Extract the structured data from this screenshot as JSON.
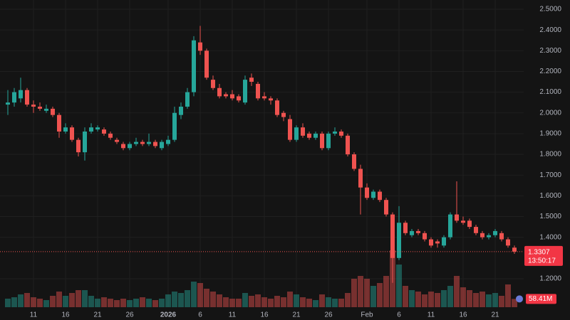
{
  "chart_data": {
    "type": "candlestick",
    "categories": [
      null,
      null,
      null,
      null,
      "11",
      null,
      null,
      null,
      null,
      "16",
      null,
      null,
      null,
      null,
      "21",
      null,
      null,
      null,
      null,
      "26",
      null,
      null,
      null,
      null,
      null,
      "2026",
      null,
      null,
      null,
      null,
      "6",
      null,
      null,
      null,
      null,
      "11",
      null,
      null,
      null,
      null,
      "16",
      null,
      null,
      null,
      null,
      "21",
      null,
      null,
      null,
      null,
      "26",
      null,
      null,
      null,
      null,
      null,
      "Feb",
      null,
      null,
      null,
      null,
      "6",
      null,
      null,
      null,
      null,
      "11",
      null,
      null,
      null,
      null,
      "16",
      null,
      null,
      null,
      null,
      "21",
      null,
      null,
      null
    ],
    "open": [
      2.04,
      2.05,
      2.07,
      2.11,
      2.04,
      2.03,
      2.01,
      2.02,
      1.99,
      1.91,
      1.93,
      1.87,
      1.81,
      1.91,
      1.92,
      1.92,
      1.9,
      1.87,
      1.85,
      1.83,
      1.85,
      1.86,
      1.85,
      1.86,
      1.83,
      1.85,
      1.87,
      1.99,
      2.03,
      2.1,
      2.34,
      2.3,
      2.16,
      2.12,
      2.09,
      2.09,
      2.08,
      2.05,
      2.17,
      2.14,
      2.08,
      2.07,
      2.06,
      2.0,
      1.97,
      1.87,
      1.93,
      1.9,
      1.88,
      1.9,
      1.83,
      1.9,
      1.91,
      1.89,
      1.8,
      1.73,
      1.64,
      1.59,
      1.62,
      1.58,
      1.51,
      1.3,
      1.47,
      1.41,
      1.43,
      1.42,
      1.39,
      1.38,
      1.36,
      1.4,
      1.51,
      1.48,
      1.48,
      1.45,
      1.42,
      1.4,
      1.41,
      1.42,
      1.39,
      1.35
    ],
    "high": [
      2.11,
      2.12,
      2.17,
      2.12,
      2.06,
      2.05,
      2.04,
      2.03,
      2.0,
      1.95,
      1.94,
      1.88,
      1.93,
      1.95,
      1.94,
      1.93,
      1.91,
      1.88,
      1.86,
      1.86,
      1.88,
      1.87,
      1.9,
      1.87,
      1.87,
      1.89,
      2.03,
      2.05,
      2.12,
      2.37,
      2.42,
      2.31,
      2.18,
      2.14,
      2.1,
      2.11,
      2.09,
      2.18,
      2.19,
      2.15,
      2.1,
      2.08,
      2.07,
      2.01,
      1.99,
      1.94,
      1.95,
      1.91,
      1.91,
      1.91,
      1.91,
      1.93,
      1.92,
      1.9,
      1.81,
      1.75,
      1.66,
      1.63,
      1.63,
      1.59,
      1.52,
      1.55,
      1.48,
      1.44,
      1.44,
      1.43,
      1.4,
      1.39,
      1.41,
      1.52,
      1.67,
      1.5,
      1.49,
      1.46,
      1.43,
      1.42,
      1.44,
      1.43,
      1.4,
      1.36
    ],
    "low": [
      1.99,
      2.03,
      2.05,
      2.03,
      2.0,
      2.01,
      2.0,
      1.98,
      1.88,
      1.9,
      1.86,
      1.79,
      1.77,
      1.9,
      1.91,
      1.89,
      1.87,
      1.85,
      1.82,
      1.82,
      1.84,
      1.84,
      1.84,
      1.83,
      1.82,
      1.84,
      1.86,
      1.97,
      2.02,
      2.08,
      2.28,
      2.16,
      2.11,
      2.07,
      2.07,
      2.06,
      2.05,
      2.04,
      2.13,
      2.06,
      2.06,
      2.04,
      1.98,
      1.96,
      1.86,
      1.86,
      1.88,
      1.87,
      1.87,
      1.82,
      1.82,
      1.89,
      1.88,
      1.79,
      1.72,
      1.51,
      1.58,
      1.58,
      1.57,
      1.5,
      1.18,
      1.29,
      1.41,
      1.4,
      1.41,
      1.38,
      1.35,
      1.35,
      1.35,
      1.39,
      1.47,
      1.46,
      1.44,
      1.41,
      1.39,
      1.39,
      1.4,
      1.38,
      1.35,
      1.32
    ],
    "close": [
      2.05,
      2.1,
      2.11,
      2.04,
      2.03,
      2.02,
      2.02,
      1.99,
      1.91,
      1.93,
      1.87,
      1.81,
      1.91,
      1.93,
      1.93,
      1.9,
      1.88,
      1.86,
      1.83,
      1.85,
      1.86,
      1.85,
      1.86,
      1.84,
      1.86,
      1.87,
      2.0,
      2.03,
      2.1,
      2.35,
      2.3,
      2.17,
      2.12,
      2.08,
      2.08,
      2.07,
      2.06,
      2.16,
      2.15,
      2.07,
      2.07,
      2.06,
      1.99,
      1.98,
      1.87,
      1.93,
      1.89,
      1.88,
      1.9,
      1.83,
      1.9,
      1.91,
      1.89,
      1.8,
      1.73,
      1.64,
      1.59,
      1.62,
      1.58,
      1.51,
      1.3,
      1.47,
      1.42,
      1.43,
      1.42,
      1.39,
      1.36,
      1.37,
      1.4,
      1.51,
      1.48,
      1.47,
      1.45,
      1.42,
      1.4,
      1.41,
      1.43,
      1.39,
      1.36,
      1.3307
    ],
    "volume": [
      60,
      70,
      90,
      100,
      70,
      60,
      50,
      80,
      110,
      80,
      100,
      120,
      120,
      80,
      60,
      70,
      60,
      50,
      60,
      50,
      60,
      70,
      60,
      50,
      60,
      90,
      110,
      100,
      120,
      180,
      170,
      130,
      110,
      90,
      70,
      60,
      60,
      100,
      80,
      90,
      70,
      60,
      80,
      70,
      110,
      90,
      70,
      60,
      50,
      90,
      70,
      60,
      60,
      100,
      200,
      220,
      200,
      150,
      170,
      220,
      400,
      300,
      150,
      120,
      110,
      90,
      110,
      100,
      120,
      150,
      220,
      140,
      120,
      100,
      110,
      90,
      100,
      80,
      160,
      58.41
    ],
    "volume_label": "58.41M",
    "last_price": 1.3307,
    "countdown": "13:50:17",
    "up_color": "#26a69a",
    "down_color": "#ef5350",
    "ylim": [
      1.0626,
      2.5446
    ],
    "yticks": [
      {
        "value": 2.5,
        "label": "2.5000"
      },
      {
        "value": 2.4,
        "label": "2.4000"
      },
      {
        "value": 2.3,
        "label": "2.3000"
      },
      {
        "value": 2.2,
        "label": "2.2000"
      },
      {
        "value": 2.1,
        "label": "2.1000"
      },
      {
        "value": 2.0,
        "label": "2.0000"
      },
      {
        "value": 1.9,
        "label": "1.9000"
      },
      {
        "value": 1.8,
        "label": "1.8000"
      },
      {
        "value": 1.7,
        "label": "1.7000"
      },
      {
        "value": 1.6,
        "label": "1.6000"
      },
      {
        "value": 1.5,
        "label": "1.5000"
      },
      {
        "value": 1.4,
        "label": "1.4000"
      },
      {
        "value": 1.2,
        "label": "1.2000"
      }
    ],
    "grid": true
  }
}
